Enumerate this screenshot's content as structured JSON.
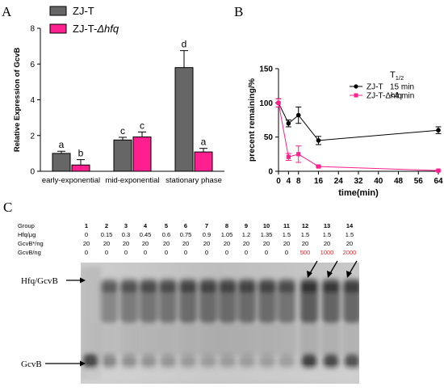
{
  "chart_data": [
    {
      "panel": "A",
      "type": "bar",
      "ylabel": "Relative Expression of GcvB",
      "ylim": [
        0,
        8
      ],
      "yticks": [
        0,
        2,
        4,
        6,
        8
      ],
      "categories": [
        "early-exponential",
        "mid-exponential",
        "stationary phase"
      ],
      "series": [
        {
          "name": "ZJ-T",
          "color": "#666666",
          "values": [
            1.0,
            1.75,
            5.8
          ],
          "errors": [
            0.12,
            0.15,
            0.95
          ],
          "letters": [
            "a",
            "c",
            "d"
          ]
        },
        {
          "name_prefix": "ZJ-T-",
          "name_italic": "Δhfq",
          "color": "#ff1f8e",
          "values": [
            0.35,
            1.92,
            1.08
          ],
          "errors": [
            0.3,
            0.28,
            0.2
          ],
          "letters": [
            "b",
            "c",
            "a"
          ]
        }
      ],
      "legend": "top-left"
    },
    {
      "panel": "B",
      "type": "line",
      "xlabel": "time(min)",
      "ylabel": "precent remaining/%",
      "xlim": [
        0,
        64
      ],
      "ylim": [
        0,
        150
      ],
      "xticks": [
        0,
        4,
        8,
        16,
        24,
        32,
        40,
        48,
        56,
        64
      ],
      "yticks": [
        0,
        50,
        100,
        150
      ],
      "legend_header": "T",
      "legend_header_sub": "1/2",
      "series": [
        {
          "name": "ZJ-T",
          "t_half": "15 min",
          "color": "#000000",
          "x": [
            0,
            4,
            8,
            16,
            64
          ],
          "y": [
            100,
            70,
            82,
            45,
            60
          ],
          "errors": [
            6,
            5,
            12,
            6,
            5
          ]
        },
        {
          "name": "ZJ-T-Δhfq",
          "t_half": "<4 min",
          "color": "#ff1f8e",
          "x": [
            0,
            4,
            8,
            16,
            64
          ],
          "y": [
            100,
            21,
            25,
            7,
            1
          ],
          "errors": [
            6,
            5,
            12,
            1,
            1
          ]
        }
      ],
      "legend": "top-right"
    },
    {
      "panel": "C",
      "type": "table",
      "rows": [
        {
          "label": "Group",
          "values": [
            "1",
            "2",
            "3",
            "4",
            "5",
            "6",
            "7",
            "8",
            "9",
            "10",
            "11",
            "12",
            "13",
            "14"
          ]
        },
        {
          "label": "Hfq/μg",
          "values": [
            "0",
            "0.15",
            "0.3",
            "0.45",
            "0.6",
            "0.75",
            "0.9",
            "1.05",
            "1.2",
            "1.35",
            "1.5",
            "1.5",
            "1.5",
            "1.5"
          ]
        },
        {
          "label": "GcvB*/ng",
          "values": [
            "20",
            "20",
            "20",
            "20",
            "20",
            "20",
            "20",
            "20",
            "20",
            "20",
            "20",
            "20",
            "20",
            "20"
          ]
        },
        {
          "label": "GcvB/ng",
          "values": [
            "0",
            "0",
            "0",
            "0",
            "0",
            "0",
            "0",
            "0",
            "0",
            "0",
            "0",
            "500",
            "1000",
            "2000"
          ],
          "highlight_from": 11,
          "highlight_color": "#e8262a"
        }
      ],
      "gel_labels": [
        "Hfq/GcvB",
        "GcvB"
      ]
    }
  ]
}
